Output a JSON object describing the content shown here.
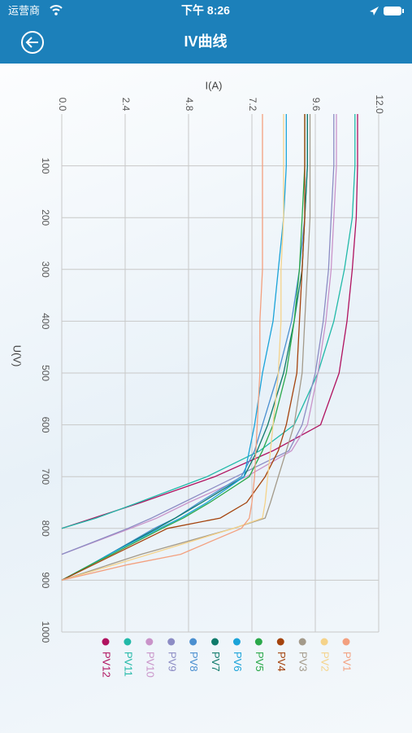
{
  "status_bar": {
    "carrier": "运营商",
    "time": "下午 8:26"
  },
  "header": {
    "title": "IV曲线"
  },
  "chart_data": {
    "type": "line",
    "x_label": "U(V)",
    "y_label": "I(A)",
    "x": [
      0,
      100,
      200,
      300,
      400,
      500,
      600,
      650,
      700,
      750,
      780,
      800,
      850,
      870,
      900
    ],
    "xlim": [
      0,
      1000
    ],
    "xticks": [
      100,
      200,
      300,
      400,
      500,
      600,
      700,
      800,
      900,
      1000
    ],
    "ylim": [
      0,
      12
    ],
    "yticks": [
      {
        "value": 0,
        "label": "0.0"
      },
      2.4,
      4.8,
      7.2,
      9.6,
      {
        "value": 12,
        "label": "12.0"
      }
    ],
    "grid": true,
    "series": [
      {
        "name": "PV12",
        "color": "#b0125f",
        "values": [
          11.2,
          11.2,
          11.15,
          11.0,
          10.8,
          10.5,
          9.8,
          8.0,
          5.8,
          3.0,
          1.2,
          0,
          null,
          null,
          null
        ]
      },
      {
        "name": "PV11",
        "color": "#21b9a8",
        "values": [
          11.1,
          11.1,
          11.0,
          10.7,
          10.3,
          9.7,
          8.8,
          7.5,
          5.5,
          2.9,
          1.3,
          0,
          null,
          null,
          null
        ]
      },
      {
        "name": "PV10",
        "color": "#c993c9",
        "values": [
          10.4,
          10.4,
          10.3,
          10.2,
          10.0,
          9.7,
          9.3,
          8.7,
          7.0,
          4.8,
          3.6,
          2.6,
          0,
          null,
          null
        ]
      },
      {
        "name": "PV9",
        "color": "#8c8cc4",
        "values": [
          10.3,
          10.3,
          10.2,
          10.1,
          9.9,
          9.6,
          9.1,
          8.6,
          6.6,
          4.6,
          3.4,
          2.5,
          0,
          null,
          null
        ]
      },
      {
        "name": "PV8",
        "color": "#4a8fd0",
        "values": [
          9.3,
          9.3,
          9.2,
          9.0,
          8.7,
          8.2,
          7.6,
          7.3,
          6.8,
          5.2,
          4.3,
          3.5,
          1.8,
          1.1,
          0
        ]
      },
      {
        "name": "PV7",
        "color": "#0f7a6a",
        "values": [
          9.3,
          9.3,
          9.2,
          9.1,
          8.8,
          8.4,
          7.8,
          7.4,
          6.9,
          5.3,
          4.3,
          3.6,
          1.8,
          1.1,
          0
        ]
      },
      {
        "name": "PV6",
        "color": "#1aa3d9",
        "values": [
          8.5,
          8.5,
          8.4,
          8.2,
          8.0,
          7.6,
          7.3,
          7.1,
          6.9,
          5.5,
          4.5,
          3.7,
          1.8,
          1.1,
          0
        ]
      },
      {
        "name": "PV5",
        "color": "#2aa84a",
        "values": [
          9.2,
          9.2,
          9.1,
          9.0,
          8.8,
          8.5,
          8.0,
          7.6,
          7.1,
          5.6,
          4.6,
          3.8,
          1.9,
          1.1,
          0
        ]
      },
      {
        "name": "PV4",
        "color": "#a4430d",
        "values": [
          9.2,
          9.2,
          9.2,
          9.1,
          9.0,
          8.9,
          8.5,
          8.2,
          7.7,
          7.0,
          6.0,
          4.0,
          2.0,
          1.2,
          0
        ]
      },
      {
        "name": "PV3",
        "color": "#a39a8a",
        "values": [
          9.4,
          9.4,
          9.4,
          9.3,
          9.2,
          9.1,
          8.8,
          8.5,
          8.2,
          7.9,
          7.7,
          6.5,
          3.0,
          1.8,
          0
        ]
      },
      {
        "name": "PV2",
        "color": "#f5d38a",
        "values": [
          8.4,
          8.4,
          8.4,
          8.3,
          8.3,
          8.2,
          8.0,
          7.9,
          7.8,
          7.7,
          7.6,
          6.5,
          3.3,
          2.0,
          0
        ]
      },
      {
        "name": "PV1",
        "color": "#f3a07f",
        "values": [
          7.6,
          7.6,
          7.6,
          7.6,
          7.5,
          7.5,
          7.4,
          7.35,
          7.3,
          7.2,
          7.1,
          6.8,
          4.5,
          2.5,
          0
        ]
      }
    ]
  }
}
